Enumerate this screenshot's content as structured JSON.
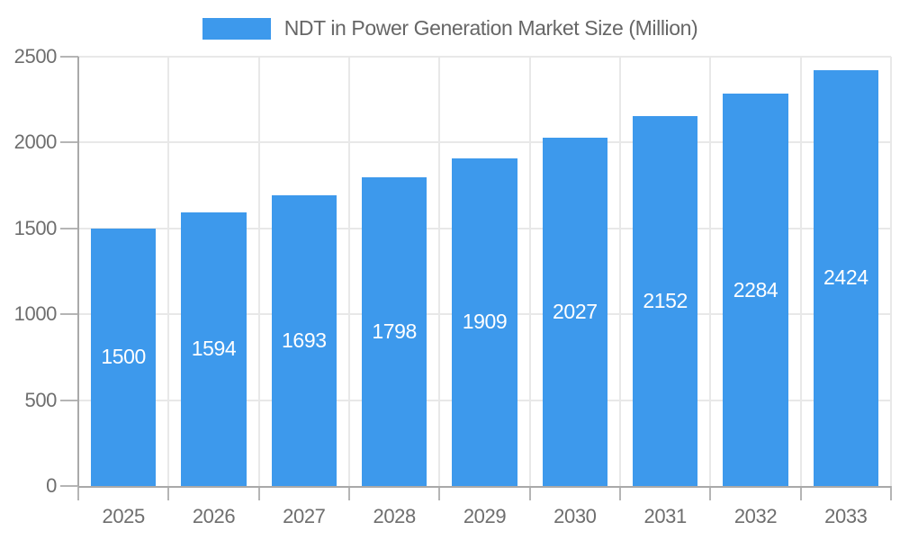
{
  "legend": {
    "items": [
      {
        "label": "NDT in Power Generation Market Size (Million)",
        "color": "#3D99EC"
      }
    ]
  },
  "chart_data": {
    "type": "bar",
    "title": "NDT in Power Generation Market Size (Million)",
    "categories": [
      "2025",
      "2026",
      "2027",
      "2028",
      "2029",
      "2030",
      "2031",
      "2032",
      "2033"
    ],
    "series": [
      {
        "name": "NDT in Power Generation Market Size (Million)",
        "values": [
          1500,
          1594,
          1693,
          1798,
          1909,
          2027,
          2152,
          2284,
          2424
        ],
        "color": "#3D99EC"
      }
    ],
    "xlabel": "",
    "ylabel": "",
    "ylim": [
      0,
      2500
    ],
    "yticks": [
      0,
      500,
      1000,
      1500,
      2000,
      2500
    ],
    "grid": true,
    "legend_position": "top",
    "value_labels": {
      "position": "inside-center",
      "color": "#ffffff"
    }
  },
  "colors": {
    "bar": "#3D99EC",
    "grid": "#e8e8e8",
    "axis": "#a9a9a9",
    "tick": "#b5b5b5",
    "axis_text": "#6e6e6e",
    "legend_text": "#666666",
    "background": "#ffffff"
  }
}
